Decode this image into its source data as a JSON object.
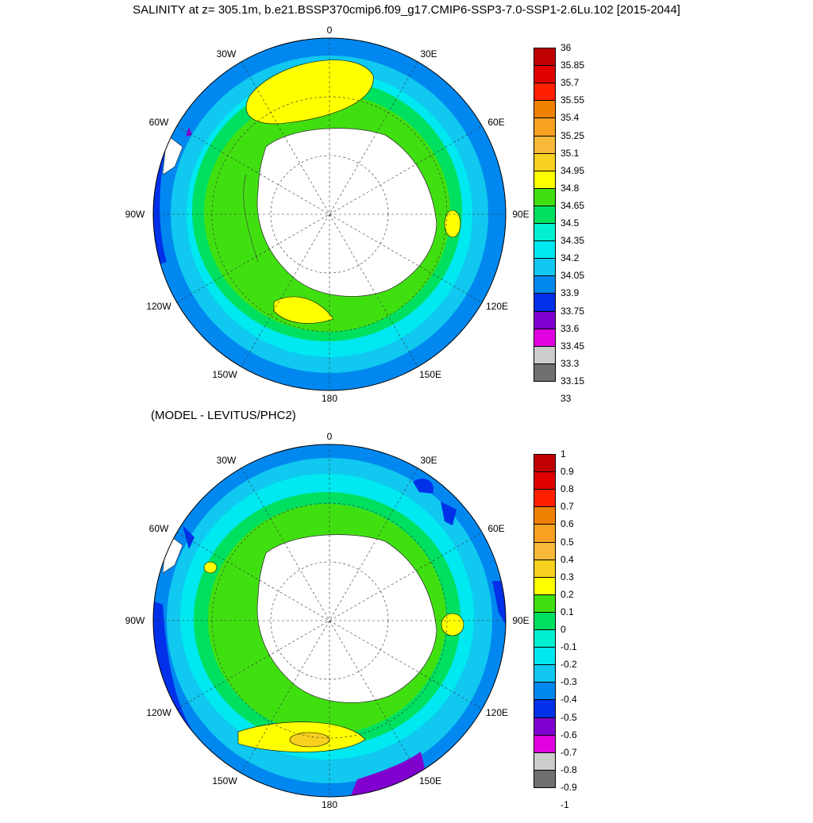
{
  "title": "SALINITY at z= 305.1m, b.e21.BSSP370cmip6.f09_g17.CMIP6-SSP3-7.0-SSP1-2.6Lu.102 [2015-2044]",
  "subtitle": "(MODEL - LEVITUS/PHC2)",
  "map_labels": [
    "0",
    "30E",
    "60E",
    "90E",
    "120E",
    "150E",
    "180",
    "150W",
    "120W",
    "90W",
    "60W",
    "30W"
  ],
  "colorbars": [
    {
      "ticks": [
        "36",
        "35.85",
        "35.7",
        "35.55",
        "35.4",
        "35.25",
        "35.1",
        "34.95",
        "34.8",
        "34.65",
        "34.5",
        "34.35",
        "34.2",
        "34.05",
        "33.9",
        "33.75",
        "33.6",
        "33.45",
        "33.3",
        "33.15",
        "33"
      ],
      "colors": [
        "#c00000",
        "#e00000",
        "#ff2000",
        "#f08000",
        "#f8a020",
        "#f8b838",
        "#f8d020",
        "#ffff00",
        "#40e010",
        "#00e060",
        "#00f0d0",
        "#00e8f0",
        "#10c8f0",
        "#0088f0",
        "#0030e8",
        "#8000d0",
        "#e000e0",
        "#cccccc",
        "#707070"
      ]
    },
    {
      "ticks": [
        "1",
        "0.9",
        "0.8",
        "0.7",
        "0.6",
        "0.5",
        "0.4",
        "0.3",
        "0.2",
        "0.1",
        "0",
        "-0.1",
        "-0.2",
        "-0.3",
        "-0.4",
        "-0.5",
        "-0.6",
        "-0.7",
        "-0.8",
        "-0.9",
        "-1"
      ],
      "colors": [
        "#c00000",
        "#e00000",
        "#ff2000",
        "#f08000",
        "#f8a020",
        "#f8b838",
        "#f8d020",
        "#ffff00",
        "#40e010",
        "#00e060",
        "#00f0d0",
        "#00e8f0",
        "#10c8f0",
        "#0088f0",
        "#0030e8",
        "#8000d0",
        "#e000e0",
        "#cccccc",
        "#707070"
      ]
    }
  ]
}
